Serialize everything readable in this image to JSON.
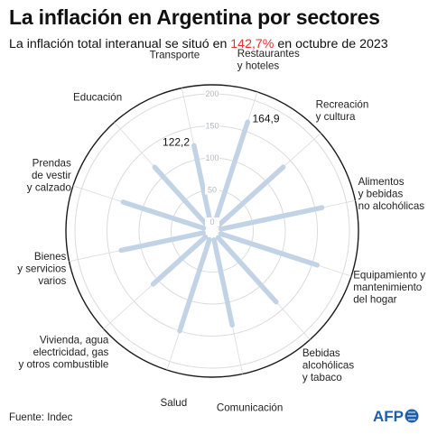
{
  "header": {
    "title": "La inflación en Argentina por sectores",
    "subtitle_pre": "La inflación total interanual se situó en ",
    "subtitle_highlight": "142,7%",
    "subtitle_post": " en octubre de 2023"
  },
  "footer": {
    "source": "Fuente: Indec",
    "logo_text": "AFP"
  },
  "colors": {
    "bar": "#c3d3e6",
    "ring": "#1a1a1a",
    "grid": "#d9dbde",
    "highlight": "#e4302b",
    "logo_bg": "#1d5fab"
  },
  "chart_data": {
    "type": "radial-bar",
    "rlim": [
      0,
      200
    ],
    "ticks": [
      "0",
      "50",
      "100",
      "150",
      "200"
    ],
    "categories": [
      {
        "label": "Restaurantes y hoteles",
        "lines": [
          "Restaurantes",
          "y hoteles"
        ],
        "value": 164.9,
        "value_label": "164,9"
      },
      {
        "label": "Recreación y cultura",
        "lines": [
          "Recreación",
          "y cultura"
        ],
        "value": 135
      },
      {
        "label": "Alimentos y bebidas no alcohólicas",
        "lines": [
          "Alimentos",
          "y bebidas",
          "no alcohólicas"
        ],
        "value": 161
      },
      {
        "label": "Equipamiento y mantenimiento del hogar",
        "lines": [
          "Equipamiento y",
          "mantenimiento",
          "del hogar"
        ],
        "value": 158
      },
      {
        "label": "Bebidas alcohólicas y tabaco",
        "lines": [
          "Bebidas",
          "alcohólicas",
          "y tabaco"
        ],
        "value": 135
      },
      {
        "label": "Comunicación",
        "lines": [
          "Comunicación"
        ],
        "value": 136
      },
      {
        "label": "Salud",
        "lines": [
          "Salud"
        ],
        "value": 150
      },
      {
        "label": "Vivienda, agua electricidad, gas y otros combustible",
        "lines": [
          "Vivienda, agua",
          "electricidad, gas",
          "y otros combustible"
        ],
        "value": 110
      },
      {
        "label": "Bienes y servicios varios",
        "lines": [
          "Bienes",
          "y servicios",
          "varios"
        ],
        "value": 131
      },
      {
        "label": "Prendas de vestir y calzado",
        "lines": [
          "Prendas",
          "de vestir",
          "y calzado"
        ],
        "value": 132
      },
      {
        "label": "Educación",
        "lines": [
          "Educación"
        ],
        "value": 120
      },
      {
        "label": "Transporte",
        "lines": [
          "Transporte"
        ],
        "value": 122.2,
        "value_label": "122,2"
      }
    ]
  }
}
